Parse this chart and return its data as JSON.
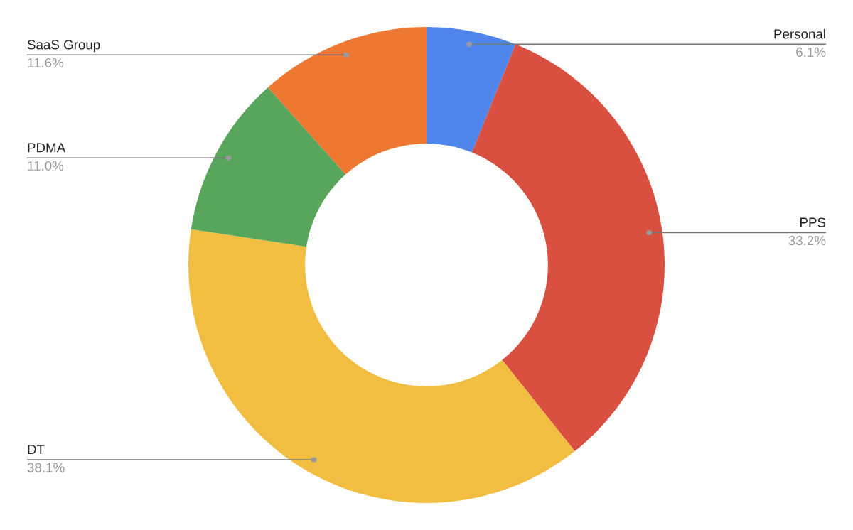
{
  "chart_data": {
    "type": "donut",
    "categories": [
      "Personal",
      "PPS",
      "DT",
      "PDMA",
      "SaaS Group"
    ],
    "values": [
      6.1,
      33.2,
      38.1,
      11.0,
      11.6
    ],
    "colors": [
      "#5086ec",
      "#d95040",
      "#f2be42",
      "#58a65c",
      "#ee7732"
    ],
    "value_labels": [
      "6.1%",
      "33.2%",
      "38.1%",
      "11.0%",
      "11.6%"
    ],
    "legend": false
  }
}
